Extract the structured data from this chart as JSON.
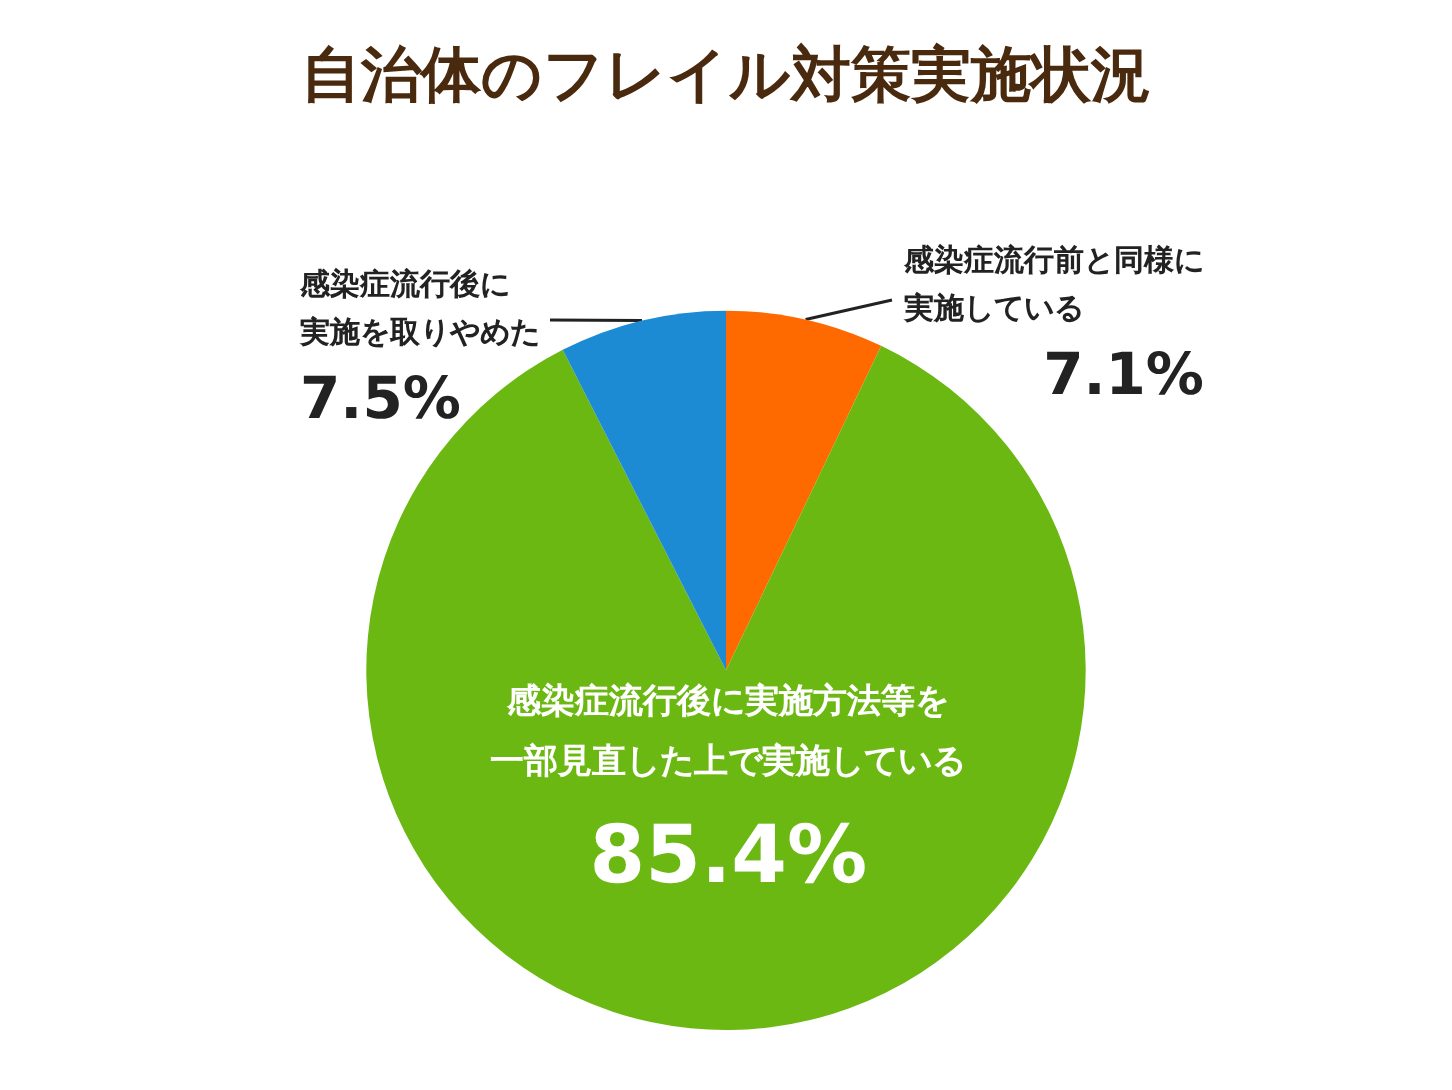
{
  "chart_data": {
    "type": "pie",
    "title": "自治体のフレイル対策実施状況",
    "categories": [
      "感染症流行前と同様に実施している",
      "感染症流行後に実施方法等を一部見直した上で実施している",
      "感染症流行後に実施を取りやめた"
    ],
    "values": [
      7.1,
      85.4,
      7.5
    ],
    "colors": [
      "#ff6a00",
      "#6cb812",
      "#1d8ad4"
    ],
    "value_labels": [
      "7.1%",
      "85.4%",
      "7.5%"
    ],
    "legend": false
  }
}
